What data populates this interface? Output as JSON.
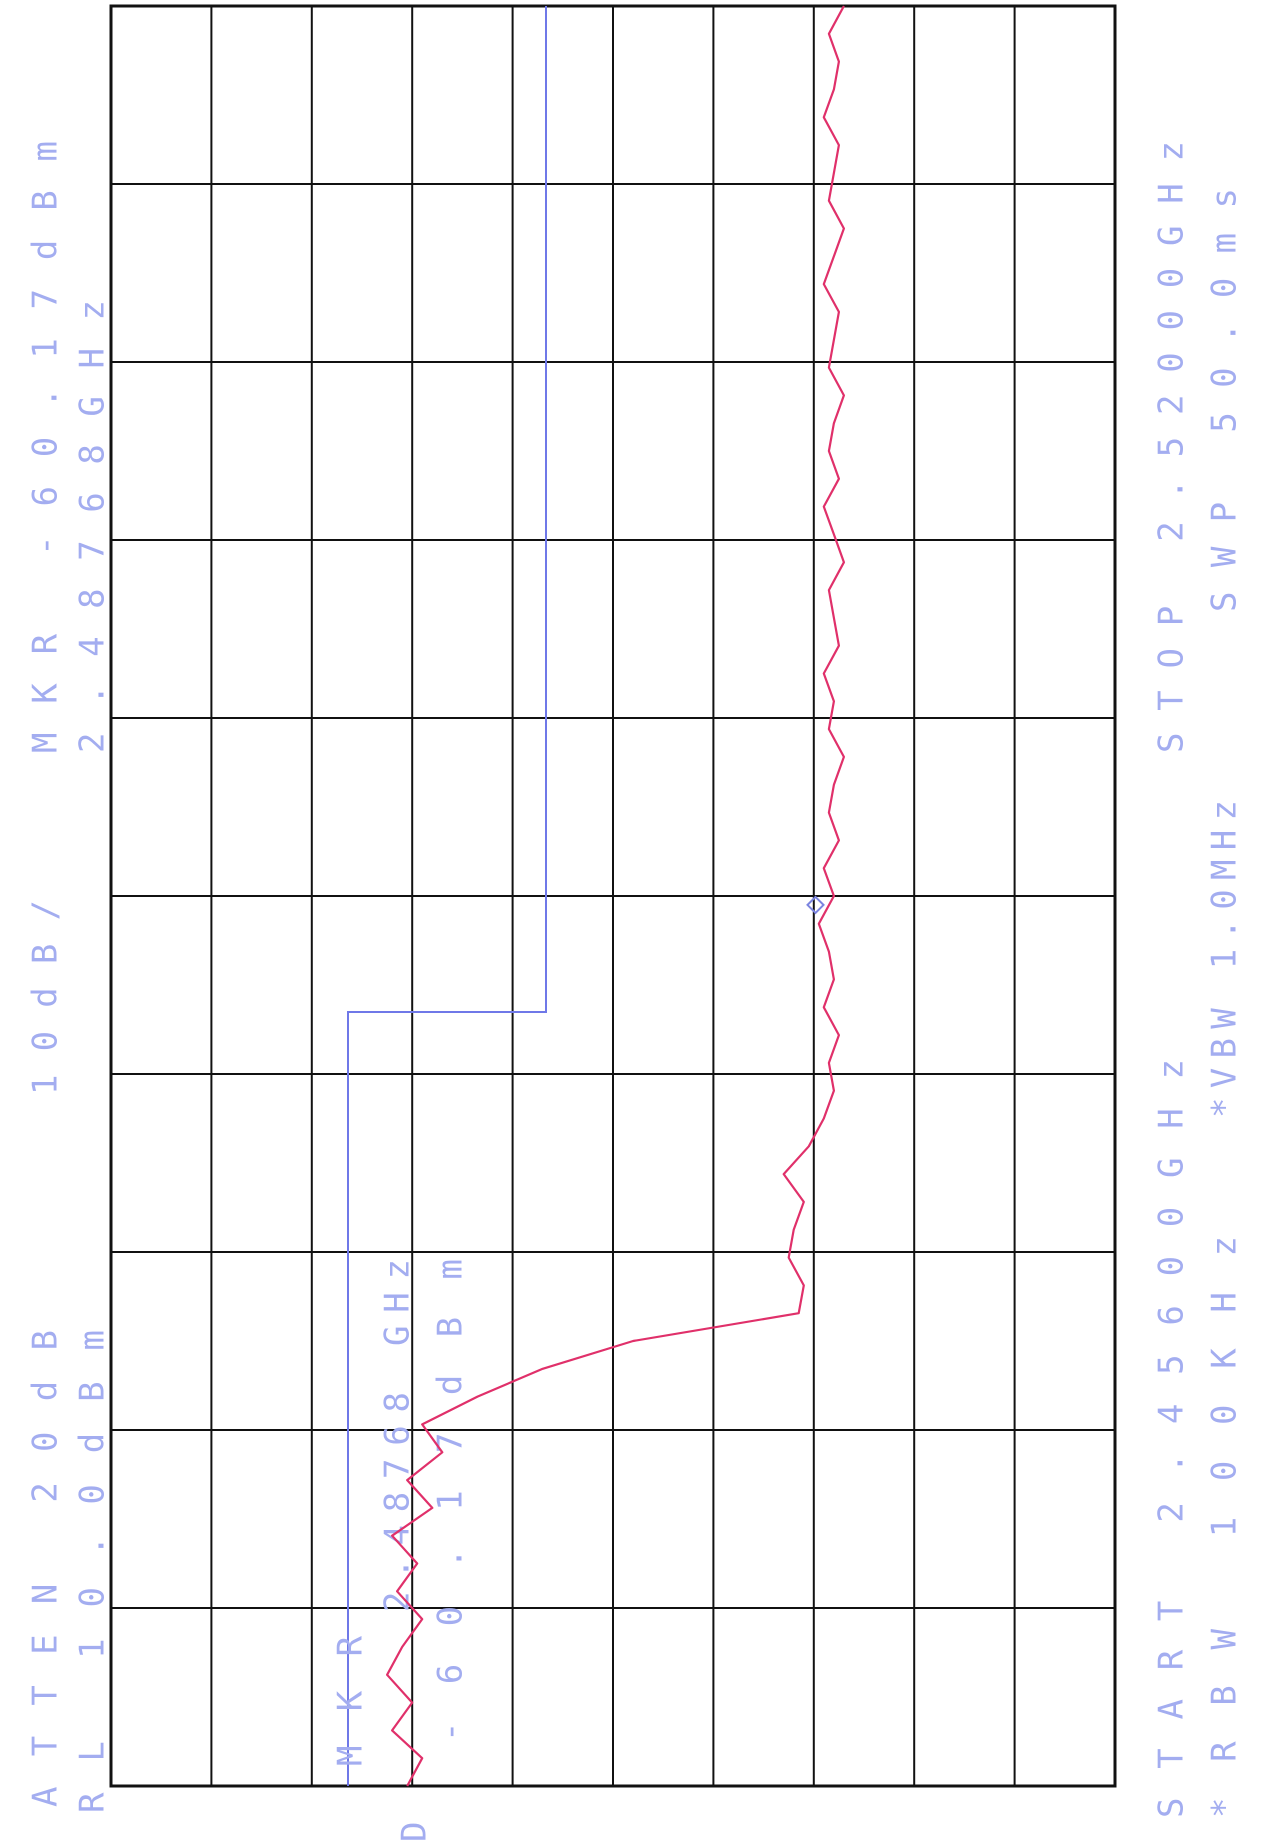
{
  "chart_data": {
    "type": "line",
    "annotations": [
      "ATTEN 20dB",
      "10dB/",
      "MKR -60.17dBm",
      "RL 10.0dBm",
      "2.48768GHz",
      "START 2.45600GHz",
      "STOP 2.52000GHz",
      "*RBW 100KHz",
      "*VBW 1.0MHz",
      "SWP 50.0ms",
      "MKR",
      "2.48768 GHz",
      "-60.17dBm",
      "D"
    ],
    "x": [
      2.456,
      2.457,
      2.458,
      2.459,
      2.46,
      2.461,
      2.462,
      2.463,
      2.464,
      2.465,
      2.466,
      2.467,
      2.468,
      2.469,
      2.47,
      2.471,
      2.472,
      2.473,
      2.474,
      2.475,
      2.476,
      2.477,
      2.478,
      2.479,
      2.48,
      2.481,
      2.482,
      2.483,
      2.484,
      2.485,
      2.486,
      2.487,
      2.488,
      2.489,
      2.49,
      2.491,
      2.492,
      2.493,
      2.494,
      2.495,
      2.496,
      2.497,
      2.498,
      2.499,
      2.5,
      2.501,
      2.502,
      2.503,
      2.504,
      2.505,
      2.506,
      2.507,
      2.508,
      2.509,
      2.51,
      2.511,
      2.512,
      2.513,
      2.514,
      2.515,
      2.516,
      2.517,
      2.518,
      2.519,
      2.52
    ],
    "series": [
      {
        "color": "#e0306a",
        "values": [
          -19.5,
          -21,
          -18,
          -20,
          -17.5,
          -19,
          -21,
          -18.5,
          -20.5,
          -18,
          -22,
          -19.5,
          -23,
          -21,
          -26.5,
          -33,
          -42,
          -58.5,
          -59,
          -57.5,
          -58,
          -59,
          -57,
          -59.5,
          -61,
          -62,
          -61.5,
          -62.5,
          -61,
          -62,
          -61.5,
          -60.5,
          -62,
          -61,
          -62.5,
          -61.5,
          -62,
          -63,
          -61.5,
          -62,
          -61,
          -62.5,
          -62,
          -61.5,
          -63,
          -62,
          -61,
          -62.5,
          -61.5,
          -62,
          -63,
          -61.5,
          -62,
          -62.5,
          -61,
          -62,
          -63,
          -61.5,
          -62,
          -62.5,
          -61,
          -62,
          -62.5,
          -61.5,
          -63
        ]
      }
    ],
    "marker": {
      "x": 2.48768,
      "value": -60.17,
      "color": "#7b84e0"
    },
    "xlim": [
      2.456,
      2.52
    ],
    "ylim": [
      -90,
      10
    ],
    "grid": true
  }
}
